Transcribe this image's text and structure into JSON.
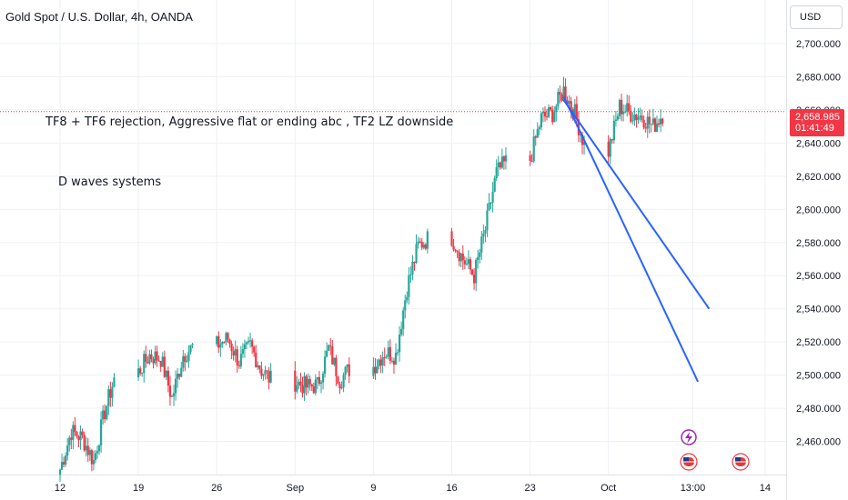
{
  "header": {
    "title": "Gold Spot / U.S. Dollar, 4h, OANDA"
  },
  "price_scale": {
    "currency_label": "USD"
  },
  "price_tag": {
    "price": "2,658.985",
    "countdown": "01:41:49"
  },
  "annotations": {
    "line1": "TF8 + TF6 rejection, Aggressive flat or ending abc , TF2 LZ downside",
    "line2": "D waves systems"
  },
  "colors": {
    "up": "#26a69a",
    "down": "#f23645",
    "grid": "#eef0f3",
    "trendline": "#2962ff",
    "price_line": "#f23645",
    "event_icon": "#9c27b0"
  },
  "icons": [
    "lightning-event-icon",
    "us-flag-icon",
    "us-flag-icon"
  ],
  "chart_data": {
    "type": "candlestick",
    "title": "Gold Spot / U.S. Dollar, 4h, OANDA",
    "ylim": [
      2440,
      2720
    ],
    "y_ticks": [
      "2,460.000",
      "2,480.000",
      "2,500.000",
      "2,520.000",
      "2,540.000",
      "2,560.000",
      "2,580.000",
      "2,600.000",
      "2,620.000",
      "2,640.000",
      "2,660.000",
      "2,680.000",
      "2,700.000"
    ],
    "y_tick_values": [
      2460,
      2480,
      2500,
      2520,
      2540,
      2560,
      2580,
      2600,
      2620,
      2640,
      2660,
      2680,
      2700
    ],
    "x_ticks": [
      "12",
      "19",
      "26",
      "Sep",
      "9",
      "16",
      "23",
      "Oct",
      "13:00",
      "14"
    ],
    "x_tick_dates": [
      "2024-08-12",
      "2024-08-19",
      "2024-08-26",
      "2024-09-02",
      "2024-09-09",
      "2024-09-16",
      "2024-09-23",
      "2024-09-30",
      "2024-10-07 13:00",
      "2024-10-14"
    ],
    "current_price": 2658.985,
    "anchor_closes": [
      [
        "2024-08-12",
        2443
      ],
      [
        "2024-08-13",
        2466
      ],
      [
        "2024-08-14",
        2462
      ],
      [
        "2024-08-15",
        2448
      ],
      [
        "2024-08-16",
        2478
      ],
      [
        "2024-08-19",
        2502
      ],
      [
        "2024-08-20",
        2512
      ],
      [
        "2024-08-21",
        2510
      ],
      [
        "2024-08-22",
        2486
      ],
      [
        "2024-08-23",
        2512
      ],
      [
        "2024-08-26",
        2518
      ],
      [
        "2024-08-27",
        2522
      ],
      [
        "2024-08-28",
        2508
      ],
      [
        "2024-08-29",
        2518
      ],
      [
        "2024-08-30",
        2503
      ],
      [
        "2024-09-02",
        2496
      ],
      [
        "2024-09-03",
        2493
      ],
      [
        "2024-09-04",
        2494
      ],
      [
        "2024-09-05",
        2516
      ],
      [
        "2024-09-06",
        2497
      ],
      [
        "2024-09-09",
        2505
      ],
      [
        "2024-09-10",
        2514
      ],
      [
        "2024-09-11",
        2512
      ],
      [
        "2024-09-12",
        2553
      ],
      [
        "2024-09-13",
        2578
      ],
      [
        "2024-09-16",
        2583
      ],
      [
        "2024-09-17",
        2570
      ],
      [
        "2024-09-18",
        2560
      ],
      [
        "2024-09-19",
        2588
      ],
      [
        "2024-09-20",
        2622
      ],
      [
        "2024-09-23",
        2630
      ],
      [
        "2024-09-24",
        2655
      ],
      [
        "2024-09-25",
        2658
      ],
      [
        "2024-09-26",
        2672
      ],
      [
        "2024-09-27",
        2658
      ],
      [
        "2024-09-30",
        2635
      ],
      [
        "2024-10-01",
        2662
      ],
      [
        "2024-10-02",
        2658
      ],
      [
        "2024-10-03",
        2656
      ],
      [
        "2024-10-04",
        2650
      ],
      [
        "2024-10-07",
        2659
      ]
    ],
    "trendlines": [
      {
        "start": [
          "2024-09-26",
          2668
        ],
        "end": [
          "2024-10-08",
          2496
        ]
      },
      {
        "start": [
          "2024-09-26",
          2666
        ],
        "end": [
          "2024-10-09",
          2540
        ]
      }
    ]
  }
}
